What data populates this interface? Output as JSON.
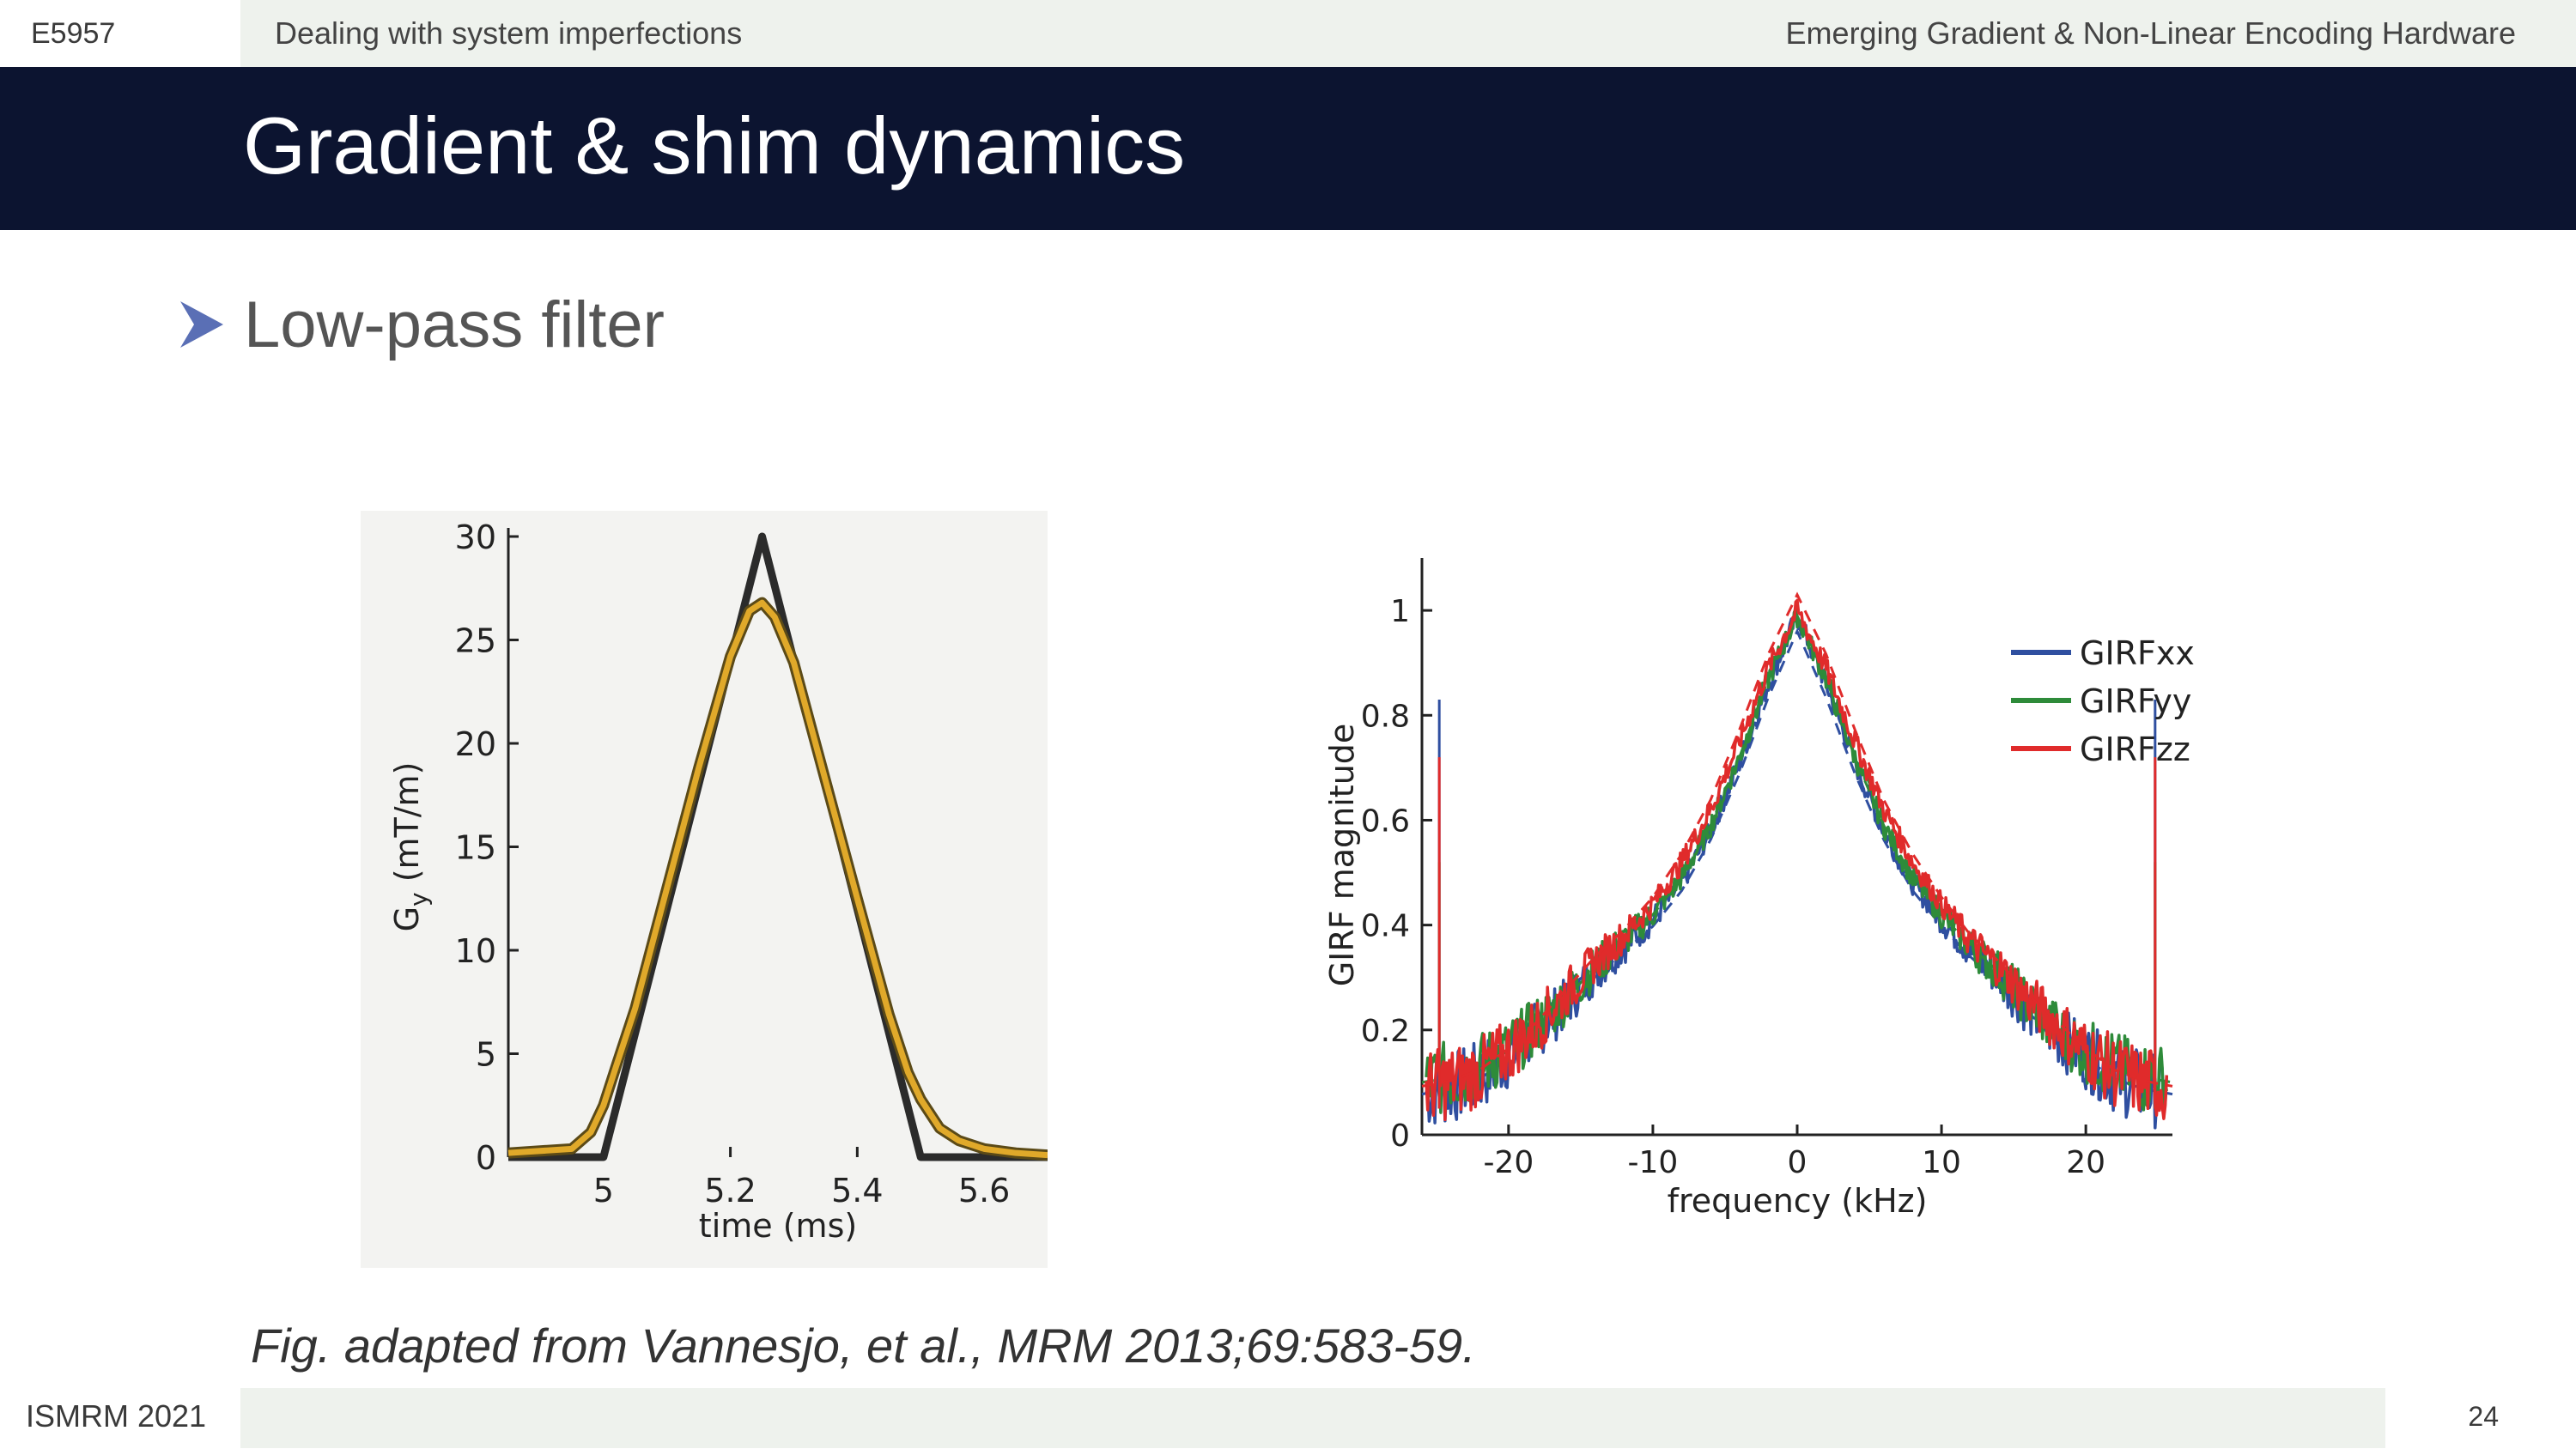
{
  "header": {
    "course_code": "E5957",
    "section": "Dealing with system imperfections",
    "course_title": "Emerging Gradient & Non-Linear Encoding Hardware"
  },
  "slide": {
    "title": "Gradient & shim dynamics",
    "bullet": "Low-pass filter",
    "bullet_icon": "arrow-bullet-icon",
    "caption": "Fig. adapted from Vannesjo, et al., MRM 2013;69:583-59."
  },
  "footer": {
    "conference": "ISMRM 2021",
    "page_number": "24"
  },
  "colors": {
    "title_band": "#0c1430",
    "header_band": "#eef2ed",
    "bullet_arrow": "#5a6fb5",
    "nominal_line": "#2b2b2b",
    "filtered_line": "#e0a92a",
    "girf_xx": "#2f4fa0",
    "girf_yy": "#2e8b3a",
    "girf_zz": "#e02b2b"
  },
  "chart_data": [
    {
      "type": "line",
      "xlabel": "time (ms)",
      "ylabel_main": "G",
      "ylabel_sub": "y",
      "ylabel_unit": " (mT/m)",
      "xlim": [
        4.85,
        5.7
      ],
      "ylim": [
        0,
        30
      ],
      "xticks": [
        5,
        5.2,
        5.4,
        5.6
      ],
      "xtick_labels": [
        "5",
        "5.2",
        "5.4",
        "5.6"
      ],
      "yticks": [
        0,
        5,
        10,
        15,
        20,
        25,
        30
      ],
      "ytick_labels": [
        "0",
        "5",
        "10",
        "15",
        "20",
        "25",
        "30"
      ],
      "series": [
        {
          "role": "nominal",
          "x": [
            4.85,
            5.0,
            5.25,
            5.5,
            5.7
          ],
          "y": [
            0,
            0,
            30,
            0,
            0
          ]
        },
        {
          "role": "filtered",
          "x": [
            4.85,
            4.95,
            4.98,
            5.0,
            5.02,
            5.05,
            5.1,
            5.15,
            5.2,
            5.23,
            5.25,
            5.27,
            5.3,
            5.35,
            5.4,
            5.45,
            5.48,
            5.5,
            5.53,
            5.56,
            5.6,
            5.65,
            5.7
          ],
          "y": [
            0.2,
            0.4,
            1.2,
            2.5,
            4.4,
            7.2,
            13.0,
            18.8,
            24.2,
            26.4,
            26.8,
            26.1,
            23.9,
            18.2,
            12.5,
            6.9,
            4.1,
            2.8,
            1.4,
            0.8,
            0.4,
            0.2,
            0.1
          ]
        }
      ]
    },
    {
      "type": "line",
      "xlabel": "frequency (kHz)",
      "ylabel": "GIRF magnitude",
      "xlim": [
        -26,
        26
      ],
      "ylim": [
        0,
        1.1
      ],
      "xticks": [
        -20,
        -10,
        0,
        10,
        20
      ],
      "xtick_labels": [
        "-20",
        "-10",
        "0",
        "10",
        "20"
      ],
      "yticks": [
        0,
        0.2,
        0.4,
        0.6,
        0.8,
        1
      ],
      "ytick_labels": [
        "0",
        "0.2",
        "0.4",
        "0.6",
        "0.8",
        "1"
      ],
      "legend_position": "top-right",
      "legend": [
        "GIRFxx",
        "GIRFyy",
        "GIRFzz"
      ],
      "series": [
        {
          "name": "GIRFxx",
          "x": [
            -26,
            -24,
            -22,
            -20,
            -18,
            -16,
            -14,
            -12,
            -10,
            -8,
            -6,
            -4,
            -2,
            0,
            2,
            4,
            6,
            8,
            10,
            12,
            14,
            16,
            18,
            20,
            22,
            24,
            26
          ],
          "y": [
            0.08,
            0.09,
            0.11,
            0.15,
            0.2,
            0.25,
            0.31,
            0.36,
            0.41,
            0.48,
            0.58,
            0.71,
            0.86,
            0.99,
            0.86,
            0.71,
            0.58,
            0.48,
            0.41,
            0.35,
            0.3,
            0.24,
            0.19,
            0.15,
            0.11,
            0.09,
            0.08
          ],
          "spikes": [
            {
              "x": -24.8,
              "y": 0.83
            },
            {
              "x": 24.8,
              "y": 0.83
            }
          ]
        },
        {
          "name": "GIRFyy",
          "x": [
            -26,
            -24,
            -22,
            -20,
            -18,
            -16,
            -14,
            -12,
            -10,
            -8,
            -6,
            -4,
            -2,
            0,
            2,
            4,
            6,
            8,
            10,
            12,
            14,
            16,
            18,
            20,
            22,
            24,
            26
          ],
          "y": [
            0.1,
            0.11,
            0.13,
            0.16,
            0.21,
            0.26,
            0.32,
            0.37,
            0.42,
            0.49,
            0.59,
            0.72,
            0.87,
            0.99,
            0.87,
            0.72,
            0.59,
            0.49,
            0.42,
            0.36,
            0.31,
            0.25,
            0.2,
            0.16,
            0.13,
            0.11,
            0.1
          ],
          "spikes": [
            {
              "x": -24.8,
              "y": 0.52
            },
            {
              "x": 24.8,
              "y": 0.52
            }
          ]
        },
        {
          "name": "GIRFzz",
          "x": [
            -26,
            -24,
            -22,
            -20,
            -18,
            -16,
            -14,
            -12,
            -10,
            -8,
            -6,
            -4,
            -2,
            0,
            2,
            4,
            6,
            8,
            10,
            12,
            14,
            16,
            18,
            20,
            22,
            24,
            26
          ],
          "y": [
            0.09,
            0.1,
            0.12,
            0.16,
            0.21,
            0.27,
            0.33,
            0.38,
            0.44,
            0.52,
            0.62,
            0.75,
            0.89,
            1.0,
            0.89,
            0.75,
            0.62,
            0.52,
            0.44,
            0.37,
            0.32,
            0.26,
            0.21,
            0.16,
            0.12,
            0.1,
            0.09
          ],
          "spikes": [
            {
              "x": -24.8,
              "y": 0.72
            },
            {
              "x": 24.8,
              "y": 0.72
            }
          ]
        }
      ]
    }
  ]
}
